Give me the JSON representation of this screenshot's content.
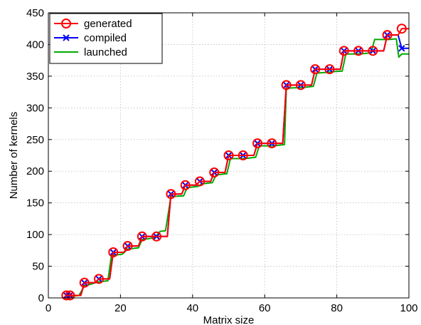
{
  "chart_data": {
    "type": "line",
    "xlabel": "Matrix size",
    "ylabel": "Number of kernels",
    "xlim": [
      0,
      100
    ],
    "ylim": [
      0,
      450
    ],
    "xticks": [
      0,
      20,
      40,
      60,
      80,
      100
    ],
    "yticks": [
      0,
      50,
      100,
      150,
      200,
      250,
      300,
      350,
      400,
      450
    ],
    "grid": true,
    "legend_position": "top-left",
    "series": [
      {
        "name": "generated",
        "color": "#ff0000",
        "marker": "circle",
        "style": "step",
        "x": [
          5,
          6,
          10,
          14,
          18,
          22,
          26,
          30,
          34,
          38,
          42,
          46,
          50,
          54,
          58,
          62,
          66,
          70,
          74,
          78,
          82,
          86,
          90,
          94,
          98,
          100
        ],
        "y": [
          4,
          4,
          24,
          30,
          72,
          82,
          97,
          97,
          164,
          178,
          184,
          198,
          225,
          225,
          244,
          244,
          336,
          336,
          361,
          361,
          390,
          390,
          390,
          415,
          425,
          425
        ]
      },
      {
        "name": "compiled",
        "color": "#0000ff",
        "marker": "x",
        "style": "step",
        "x": [
          5,
          6,
          10,
          14,
          18,
          22,
          26,
          30,
          34,
          38,
          42,
          46,
          50,
          54,
          58,
          62,
          66,
          70,
          74,
          78,
          82,
          86,
          90,
          94,
          98,
          100
        ],
        "y": [
          4,
          4,
          24,
          30,
          72,
          82,
          97,
          97,
          164,
          178,
          184,
          198,
          225,
          225,
          244,
          244,
          336,
          336,
          361,
          361,
          390,
          390,
          390,
          415,
          394,
          394
        ]
      },
      {
        "name": "launched",
        "color": "#00aa00",
        "marker": "none",
        "style": "smooth-step",
        "x": [
          4.5,
          5.5,
          7,
          8.5,
          10,
          12,
          13.5,
          16.5,
          17.5,
          20.5,
          22,
          25,
          26,
          29.5,
          31,
          32.5,
          34,
          37.5,
          38.5,
          41.5,
          42.5,
          45.5,
          46.5,
          49.5,
          50.5,
          53.5,
          54.5,
          57.5,
          58.5,
          61.5,
          62.5,
          65.5,
          66,
          69.5,
          70.5,
          73.5,
          74.5,
          77.5,
          78.5,
          81.5,
          82.5,
          85.5,
          86.5,
          89.5,
          90.5,
          93.5,
          94.5,
          96.5,
          97.2,
          98,
          100
        ],
        "y": [
          0,
          1,
          3,
          4,
          19,
          22,
          25,
          27,
          67,
          69,
          77,
          79,
          92,
          95,
          105,
          106,
          160,
          161,
          174,
          176,
          180,
          182,
          194,
          196,
          220,
          220,
          220,
          222,
          240,
          240,
          240,
          242,
          331,
          332,
          332,
          334,
          355,
          356,
          357,
          358,
          385,
          385,
          385,
          387,
          408,
          408,
          408,
          409,
          380,
          385,
          385
        ]
      }
    ]
  }
}
